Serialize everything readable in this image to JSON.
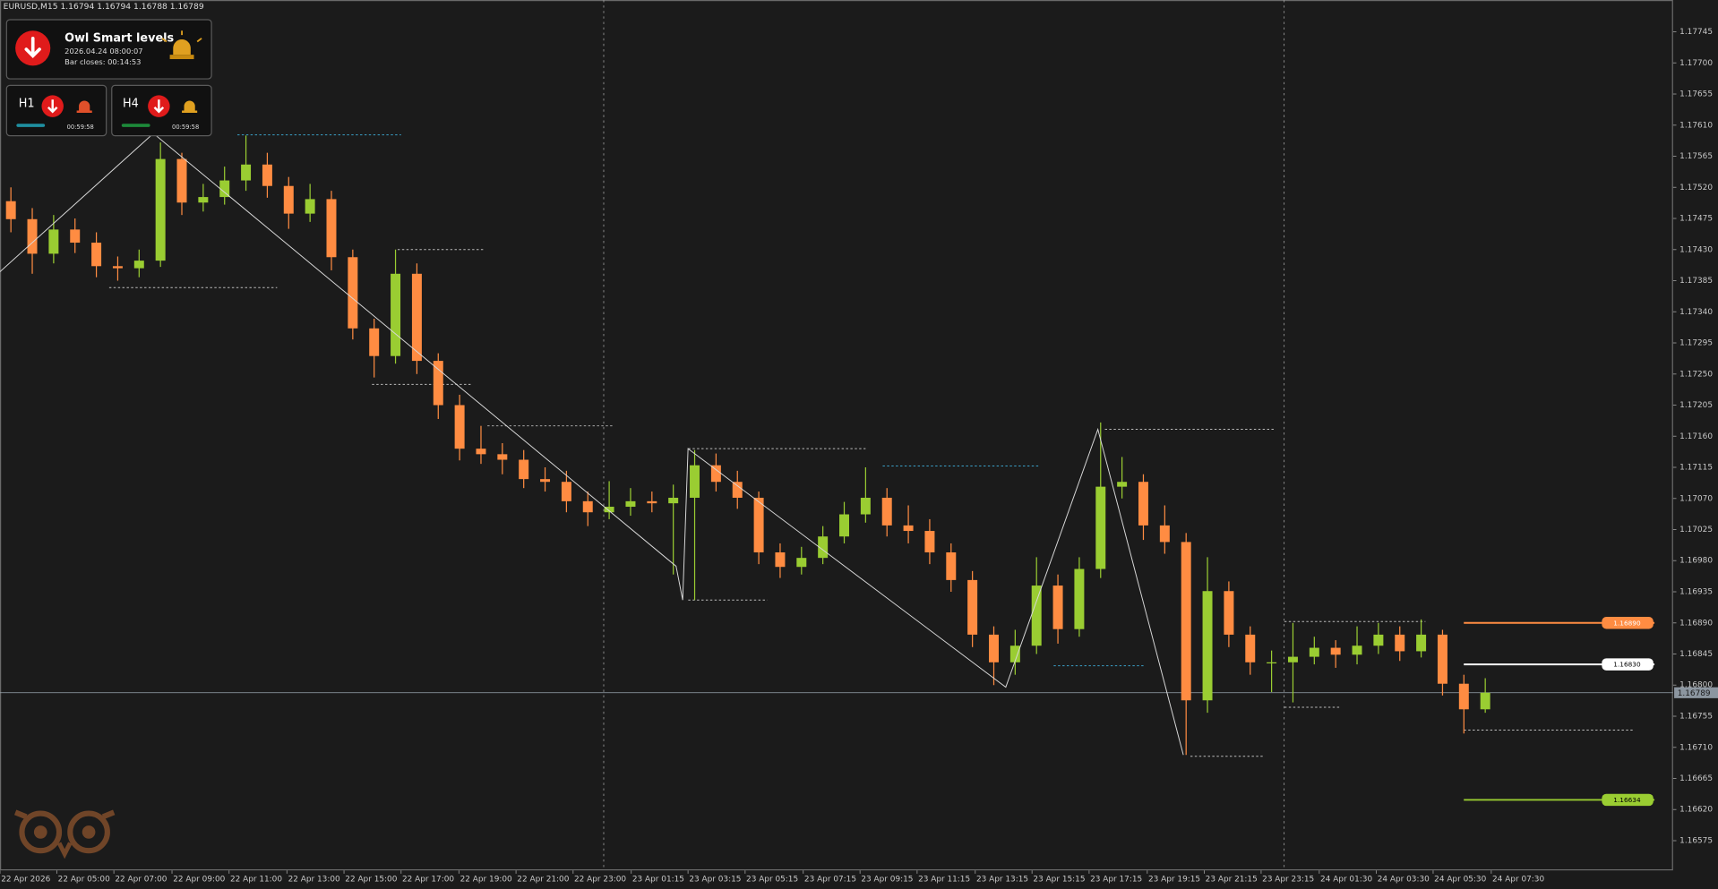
{
  "chart_data": {
    "type": "candlestick",
    "title": "EURUSD,M15  1.16794 1.16794 1.16788 1.16789",
    "up_color": "#9acd32",
    "down_color": "#ff8c42",
    "background": "#1b1b1b",
    "open": [
      1.175,
      1.17474,
      1.17424,
      1.17459,
      1.1744,
      1.17406,
      1.17403,
      1.17414,
      1.17561,
      1.17498,
      1.17506,
      1.1753,
      1.17553,
      1.17522,
      1.17482,
      1.17503,
      1.17419,
      1.17316,
      1.17276,
      1.17395,
      1.17269,
      1.17205,
      1.17142,
      1.17134,
      1.17126,
      1.17098,
      1.17094,
      1.17066,
      1.1705,
      1.17058,
      1.17066,
      1.17063,
      1.17071,
      1.17118,
      1.17094,
      1.17071,
      1.16992,
      1.16971,
      1.16984,
      1.17015,
      1.17047,
      1.17071,
      1.17031,
      1.17023,
      1.16992,
      1.16952,
      1.16873,
      1.16833,
      1.16857,
      1.16944,
      1.16881,
      1.16968,
      1.17087,
      1.17094,
      1.17031,
      1.17007,
      1.16778,
      1.16936,
      1.16873,
      1.16833,
      1.16833,
      1.16841,
      1.16854,
      1.16844,
      1.16857,
      1.16873,
      1.16849,
      1.16873,
      1.16802,
      1.16765
    ],
    "high": [
      1.1752,
      1.1749,
      1.1748,
      1.17475,
      1.17455,
      1.1742,
      1.1743,
      1.17585,
      1.1757,
      1.17525,
      1.1755,
      1.17595,
      1.1757,
      1.17535,
      1.17525,
      1.17515,
      1.1743,
      1.1733,
      1.1743,
      1.1741,
      1.1728,
      1.1722,
      1.17175,
      1.1715,
      1.1714,
      1.17115,
      1.1711,
      1.1708,
      1.17095,
      1.17085,
      1.1708,
      1.1709,
      1.1714,
      1.17135,
      1.1711,
      1.1708,
      1.17005,
      1.17,
      1.1703,
      1.17065,
      1.17115,
      1.17085,
      1.1706,
      1.1704,
      1.17005,
      1.16965,
      1.16885,
      1.1688,
      1.16985,
      1.1696,
      1.16985,
      1.1718,
      1.1713,
      1.17105,
      1.1706,
      1.1702,
      1.16985,
      1.1695,
      1.16885,
      1.1685,
      1.1689,
      1.1687,
      1.16865,
      1.16885,
      1.1689,
      1.16885,
      1.16895,
      1.1688,
      1.16815,
      1.1681
    ],
    "low": [
      1.17455,
      1.17395,
      1.1741,
      1.17425,
      1.1739,
      1.17385,
      1.1739,
      1.17405,
      1.1748,
      1.17485,
      1.17495,
      1.17515,
      1.17505,
      1.1746,
      1.1747,
      1.174,
      1.173,
      1.17245,
      1.17265,
      1.1725,
      1.17185,
      1.17125,
      1.1712,
      1.17105,
      1.17085,
      1.1708,
      1.1705,
      1.1703,
      1.1704,
      1.17045,
      1.1705,
      1.1696,
      1.16923,
      1.1708,
      1.17055,
      1.16975,
      1.16955,
      1.1696,
      1.16975,
      1.17005,
      1.17035,
      1.17015,
      1.17005,
      1.16975,
      1.16935,
      1.16855,
      1.168,
      1.16815,
      1.16845,
      1.1686,
      1.1687,
      1.16955,
      1.1707,
      1.1701,
      1.1699,
      1.16699,
      1.1676,
      1.16855,
      1.16815,
      1.1679,
      1.16775,
      1.1683,
      1.16825,
      1.1683,
      1.16845,
      1.16835,
      1.1684,
      1.16785,
      1.1673,
      1.1676
    ],
    "close": [
      1.17474,
      1.17424,
      1.17459,
      1.1744,
      1.17406,
      1.17403,
      1.17414,
      1.17561,
      1.17498,
      1.17506,
      1.1753,
      1.17553,
      1.17522,
      1.17482,
      1.17503,
      1.17419,
      1.17316,
      1.17276,
      1.17395,
      1.17269,
      1.17205,
      1.17142,
      1.17134,
      1.17126,
      1.17098,
      1.17094,
      1.17066,
      1.1705,
      1.17058,
      1.17066,
      1.17063,
      1.17071,
      1.17118,
      1.17094,
      1.17071,
      1.16992,
      1.16971,
      1.16984,
      1.17015,
      1.17047,
      1.17071,
      1.17031,
      1.17023,
      1.16992,
      1.16952,
      1.16873,
      1.16833,
      1.16857,
      1.16944,
      1.16881,
      1.16968,
      1.17087,
      1.17094,
      1.17031,
      1.17007,
      1.16778,
      1.16936,
      1.16873,
      1.16833,
      1.16833,
      1.16841,
      1.16854,
      1.16844,
      1.16857,
      1.16873,
      1.16849,
      1.16873,
      1.16802,
      1.16765,
      1.16789
    ],
    "xlim": [
      -0.51,
      77.79
    ],
    "xticks": [
      {
        "value": -0.51,
        "label": "22 Apr 2026"
      },
      {
        "value": 2.15,
        "label": "22 Apr 05:00"
      },
      {
        "value": 4.82,
        "label": "22 Apr 07:00"
      },
      {
        "value": 7.54,
        "label": "22 Apr 09:00"
      },
      {
        "value": 10.21,
        "label": "22 Apr 11:00"
      },
      {
        "value": 12.92,
        "label": "22 Apr 13:00"
      },
      {
        "value": 15.59,
        "label": "22 Apr 15:00"
      },
      {
        "value": 18.26,
        "label": "22 Apr 17:00"
      },
      {
        "value": 20.97,
        "label": "22 Apr 19:00"
      },
      {
        "value": 23.64,
        "label": "22 Apr 21:00"
      },
      {
        "value": 26.31,
        "label": "22 Apr 23:00"
      },
      {
        "value": 29.03,
        "label": "23 Apr 01:15"
      },
      {
        "value": 31.69,
        "label": "23 Apr 03:15"
      },
      {
        "value": 34.36,
        "label": "23 Apr 05:15"
      },
      {
        "value": 37.08,
        "label": "23 Apr 07:15"
      },
      {
        "value": 39.74,
        "label": "23 Apr 09:15"
      },
      {
        "value": 42.41,
        "label": "23 Apr 11:15"
      },
      {
        "value": 45.13,
        "label": "23 Apr 13:15"
      },
      {
        "value": 47.79,
        "label": "23 Apr 15:15"
      },
      {
        "value": 50.46,
        "label": "23 Apr 17:15"
      },
      {
        "value": 53.18,
        "label": "23 Apr 19:15"
      },
      {
        "value": 55.85,
        "label": "23 Apr 21:15"
      },
      {
        "value": 58.51,
        "label": "23 Apr 23:15"
      },
      {
        "value": 61.23,
        "label": "24 Apr 01:30"
      },
      {
        "value": 63.9,
        "label": "24 Apr 03:30"
      },
      {
        "value": 66.56,
        "label": "24 Apr 05:30"
      },
      {
        "value": 69.28,
        "label": "24 Apr 07:30"
      }
    ],
    "ylim": [
      1.16532,
      1.17791
    ],
    "yticks": [
      1.17745,
      {
        "value": 1.177,
        "label": "1.17700"
      },
      1.17655,
      {
        "value": 1.1761,
        "label": "1.17610"
      },
      1.17565,
      {
        "value": 1.1752,
        "label": "1.17520"
      },
      1.17475,
      {
        "value": 1.1743,
        "label": "1.17430"
      },
      1.17385,
      {
        "value": 1.1734,
        "label": "1.17340"
      },
      1.17295,
      {
        "value": 1.1725,
        "label": "1.17250"
      },
      1.17205,
      {
        "value": 1.1716,
        "label": "1.17160"
      },
      1.17115,
      {
        "value": 1.1707,
        "label": "1.17070"
      },
      1.17025,
      {
        "value": 1.1698,
        "label": "1.16980"
      },
      1.16935,
      {
        "value": 1.1689,
        "label": "1.16890"
      },
      1.16845,
      {
        "value": 1.168,
        "label": "1.16800"
      },
      1.16755,
      {
        "value": 1.1671,
        "label": "1.16710"
      },
      1.16665,
      {
        "value": 1.1662,
        "label": "1.16620"
      },
      1.16575
    ],
    "current_price": 1.16789,
    "zigzag": {
      "color": "#d8d8d8",
      "x": [
        -0.51,
        6.67,
        31.13,
        31.44,
        31.69,
        46.56,
        50.87,
        54.87
      ],
      "values": [
        1.17398,
        1.17598,
        1.16972,
        1.16923,
        1.17142,
        1.16797,
        1.1717,
        1.16699
      ]
    },
    "dashed_levels": [
      {
        "from": 10.6,
        "to": 18.26,
        "value": 1.17596,
        "color": "#3aa0c8"
      },
      {
        "from": 18.1,
        "to": 22.2,
        "value": 1.1743,
        "color": "#bbbbbb"
      },
      {
        "from": 4.6,
        "to": 12.46,
        "value": 1.17375,
        "color": "#bbbbbb"
      },
      {
        "from": 16.9,
        "to": 21.6,
        "value": 1.17235,
        "color": "#bbbbbb"
      },
      {
        "from": 22.3,
        "to": 28.2,
        "value": 1.17175,
        "color": "#bbbbbb"
      },
      {
        "from": 31.7,
        "to": 40,
        "value": 1.17142,
        "color": "#bbbbbb"
      },
      {
        "from": 40.8,
        "to": 48.1,
        "value": 1.17117,
        "color": "#3aa0c8"
      },
      {
        "from": 51.2,
        "to": 59.1,
        "value": 1.1717,
        "color": "#bbbbbb"
      },
      {
        "from": 31.7,
        "to": 35.4,
        "value": 1.16923,
        "color": "#bbbbbb"
      },
      {
        "from": 55.2,
        "to": 58.6,
        "value": 1.16697,
        "color": "#bbbbbb"
      },
      {
        "from": 48.8,
        "to": 53.1,
        "value": 1.16828,
        "color": "#3aa0c8"
      },
      {
        "from": 68,
        "to": 75.9,
        "value": 1.16735,
        "color": "#bbbbbb"
      },
      {
        "from": 59.6,
        "to": 66.2,
        "value": 1.16892,
        "color": "#bbbbbb"
      },
      {
        "from": 59.6,
        "to": 62.2,
        "value": 1.16768,
        "color": "#bbbbbb"
      }
    ],
    "smart_levels": [
      {
        "value": 1.1689,
        "label": "1.16890",
        "color": "#ff8c42",
        "text_color": "#ffffff"
      },
      {
        "value": 1.1683,
        "label": "1.16830",
        "color": "#ffffff",
        "text_color": "#000000"
      },
      {
        "value": 1.16634,
        "label": "1.16634",
        "color": "#9acd32",
        "text_color": "#000000"
      }
    ]
  },
  "panel": {
    "title": "Owl Smart levels",
    "time": "2026.04.24 08:00:07",
    "bar_closes": "Bar closes: 00:14:53",
    "timeframes": [
      {
        "name": "H1",
        "timer": "00:59:58"
      },
      {
        "name": "H4",
        "timer": "00:59:58"
      }
    ]
  }
}
